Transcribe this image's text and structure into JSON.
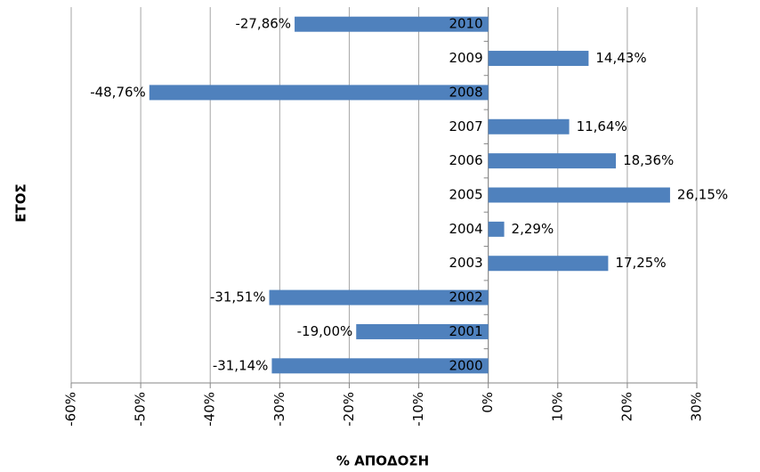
{
  "chart_data": {
    "type": "barh",
    "xlabel": "% ΑΠΟΔΟΣΗ",
    "ylabel": "ΕΤΟΣ",
    "categories": [
      "2000",
      "2001",
      "2002",
      "2003",
      "2004",
      "2005",
      "2006",
      "2007",
      "2008",
      "2009",
      "2010"
    ],
    "values": [
      -31.14,
      -19.0,
      -31.51,
      17.25,
      2.29,
      26.15,
      18.36,
      11.64,
      -48.76,
      14.43,
      -27.86
    ],
    "value_labels": [
      "-31,14%",
      "-19,00%",
      "-31,51%",
      "17,25%",
      "2,29%",
      "26,15%",
      "18,36%",
      "11,64%",
      "-48,76%",
      "14,43%",
      "-27,86%"
    ],
    "color": "#4f81bd",
    "xlim": [
      -60,
      30
    ],
    "xticks": [
      {
        "value": -60,
        "label": "-60%"
      },
      {
        "value": -50,
        "label": "-50%"
      },
      {
        "value": -40,
        "label": "-40%"
      },
      {
        "value": -30,
        "label": "-30%"
      },
      {
        "value": -20,
        "label": "-20%"
      },
      {
        "value": -10,
        "label": "-10%"
      },
      {
        "value": 0,
        "label": "0%"
      },
      {
        "value": 10,
        "label": "10%"
      },
      {
        "value": 20,
        "label": "20%"
      },
      {
        "value": 30,
        "label": "30%"
      }
    ],
    "grid": true
  }
}
